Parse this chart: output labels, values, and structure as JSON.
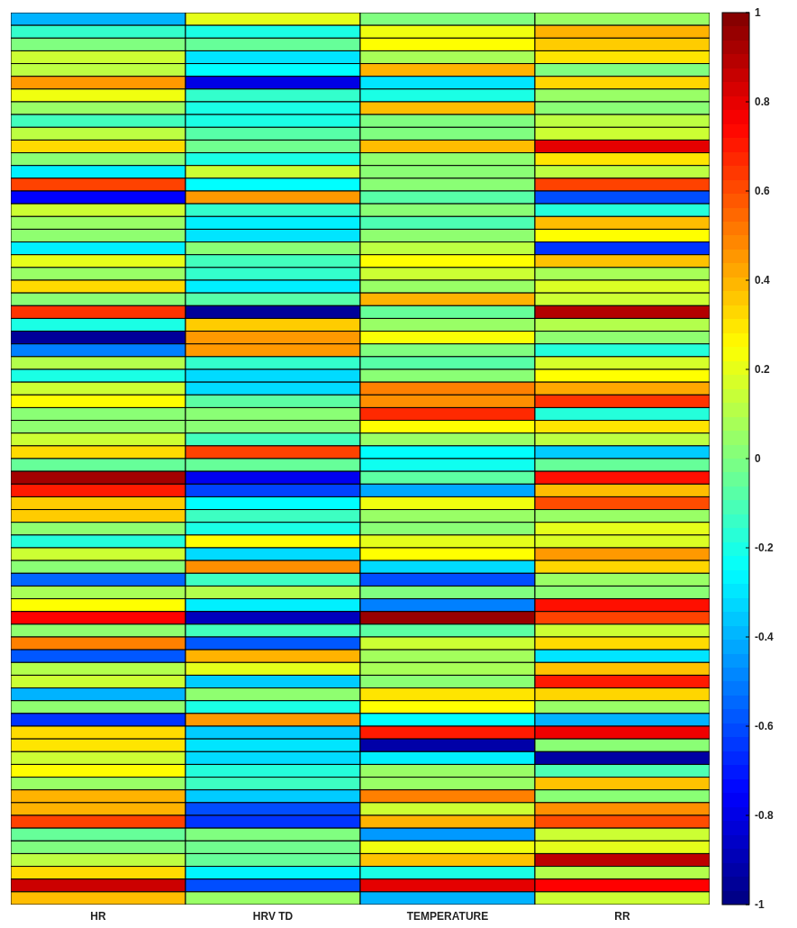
{
  "chart_data": {
    "type": "heatmap",
    "categories": [
      "HR",
      "HRV TD",
      "TEMPERATURE",
      "RR"
    ],
    "cells": [
      [
        -0.4,
        0.2,
        0.0,
        0.05
      ],
      [
        -0.15,
        -0.2,
        0.22,
        0.4
      ],
      [
        0.0,
        -0.05,
        0.25,
        0.35
      ],
      [
        0.15,
        -0.3,
        0.08,
        0.3
      ],
      [
        0.12,
        -0.25,
        0.4,
        0.0
      ],
      [
        0.45,
        -0.8,
        -0.3,
        0.33
      ],
      [
        0.22,
        -0.15,
        -0.2,
        0.05
      ],
      [
        0.05,
        -0.2,
        0.38,
        0.02
      ],
      [
        -0.12,
        -0.2,
        0.0,
        0.12
      ],
      [
        0.12,
        -0.08,
        0.0,
        0.15
      ],
      [
        0.32,
        -0.03,
        0.38,
        0.8
      ],
      [
        0.02,
        -0.2,
        0.03,
        0.3
      ],
      [
        -0.28,
        0.15,
        0.02,
        0.12
      ],
      [
        0.62,
        -0.25,
        0.02,
        0.62
      ],
      [
        -0.75,
        0.45,
        -0.08,
        -0.6
      ],
      [
        0.15,
        -0.15,
        0.02,
        -0.18
      ],
      [
        0.05,
        -0.28,
        -0.1,
        0.38
      ],
      [
        0.03,
        -0.3,
        0.03,
        0.25
      ],
      [
        -0.28,
        0.02,
        0.12,
        -0.65
      ],
      [
        0.2,
        -0.12,
        0.25,
        0.37
      ],
      [
        0.05,
        -0.15,
        0.15,
        0.08
      ],
      [
        0.32,
        -0.28,
        0.05,
        0.18
      ],
      [
        0.02,
        -0.08,
        0.4,
        0.15
      ],
      [
        0.65,
        -0.95,
        -0.05,
        0.9
      ],
      [
        -0.2,
        0.35,
        0.05,
        0.1
      ],
      [
        -0.95,
        0.45,
        0.24,
        0.03
      ],
      [
        -0.5,
        0.45,
        0.0,
        -0.18
      ],
      [
        0.1,
        -0.15,
        -0.08,
        0.17
      ],
      [
        -0.2,
        -0.32,
        0.02,
        0.25
      ],
      [
        0.15,
        -0.32,
        0.5,
        0.42
      ],
      [
        0.25,
        -0.07,
        0.47,
        0.65
      ],
      [
        0.02,
        0.02,
        0.67,
        -0.18
      ],
      [
        0.03,
        0.02,
        0.25,
        0.3
      ],
      [
        0.15,
        -0.12,
        0.05,
        0.12
      ],
      [
        0.32,
        0.62,
        -0.25,
        -0.35
      ],
      [
        -0.05,
        -0.05,
        -0.22,
        -0.05
      ],
      [
        0.93,
        -0.78,
        -0.07,
        0.72
      ],
      [
        0.7,
        -0.62,
        -0.42,
        0.38
      ],
      [
        0.35,
        -0.25,
        0.22,
        0.6
      ],
      [
        0.35,
        -0.13,
        0.05,
        0.05
      ],
      [
        0.03,
        -0.2,
        0.02,
        0.2
      ],
      [
        -0.18,
        0.25,
        0.2,
        0.18
      ],
      [
        0.15,
        -0.32,
        0.25,
        0.45
      ],
      [
        0.02,
        0.47,
        -0.32,
        0.33
      ],
      [
        -0.55,
        -0.13,
        -0.6,
        0.05
      ],
      [
        0.08,
        0.1,
        0.0,
        0.02
      ],
      [
        0.25,
        -0.28,
        -0.5,
        0.72
      ],
      [
        0.75,
        -0.88,
        0.95,
        0.62
      ],
      [
        0.03,
        -0.12,
        -0.07,
        0.15
      ],
      [
        0.5,
        -0.58,
        0.15,
        0.32
      ],
      [
        -0.58,
        0.4,
        0.07,
        -0.3
      ],
      [
        0.1,
        0.2,
        0.08,
        0.37
      ],
      [
        0.15,
        -0.35,
        0.02,
        0.7
      ],
      [
        -0.4,
        0.03,
        0.3,
        0.33
      ],
      [
        0.03,
        -0.2,
        0.25,
        0.05
      ],
      [
        -0.65,
        0.45,
        -0.25,
        -0.4
      ],
      [
        0.32,
        -0.35,
        0.7,
        0.78
      ],
      [
        0.3,
        -0.3,
        -0.92,
        0.02
      ],
      [
        0.15,
        -0.32,
        -0.28,
        -0.93
      ],
      [
        0.25,
        -0.18,
        0.05,
        -0.1
      ],
      [
        0.05,
        -0.13,
        0.05,
        0.37
      ],
      [
        0.4,
        -0.35,
        0.5,
        0.02
      ],
      [
        0.4,
        -0.6,
        0.15,
        0.47
      ],
      [
        0.62,
        -0.65,
        0.4,
        0.6
      ],
      [
        -0.05,
        0.0,
        -0.45,
        0.15
      ],
      [
        0.0,
        -0.03,
        0.22,
        0.2
      ],
      [
        0.12,
        -0.05,
        0.37,
        0.88
      ],
      [
        0.32,
        -0.27,
        -0.2,
        0.1
      ],
      [
        0.85,
        -0.6,
        0.8,
        0.75
      ],
      [
        0.38,
        0.05,
        -0.4,
        0.15
      ]
    ],
    "y_categories": [
      null,
      null,
      null,
      null,
      null,
      null,
      null,
      null,
      null,
      null,
      null,
      null,
      null,
      null,
      null,
      null,
      null,
      null,
      null,
      null,
      null,
      null,
      null,
      null,
      null,
      null,
      null,
      null,
      null,
      null,
      null,
      null,
      null,
      null,
      null,
      null,
      null,
      null,
      null,
      null,
      null,
      null,
      null,
      null,
      null,
      null,
      null,
      null,
      null,
      null,
      null,
      null,
      null,
      null,
      null,
      null,
      null,
      null,
      null,
      null,
      null,
      null,
      null,
      null,
      null,
      null,
      null,
      null,
      null,
      null
    ],
    "clim": [
      -1,
      1
    ],
    "cticks": [
      -1,
      -0.8,
      -0.6,
      -0.4,
      -0.2,
      0,
      0.2,
      0.4,
      0.6,
      0.8,
      1
    ]
  }
}
